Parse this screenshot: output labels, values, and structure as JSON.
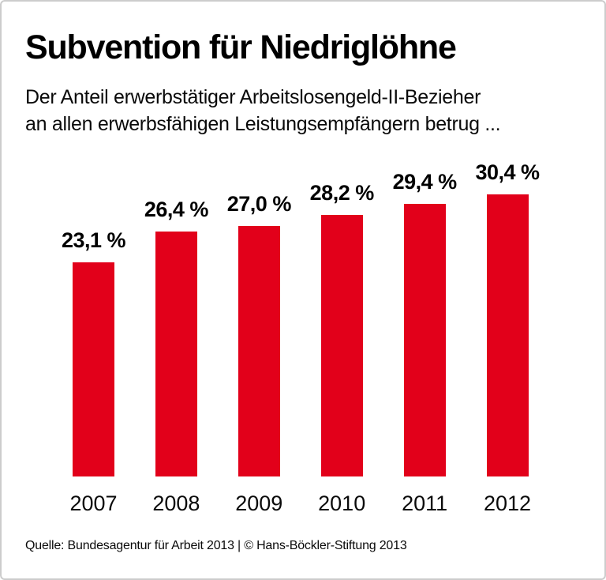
{
  "header": {
    "title": "Subvention für Niedriglöhne",
    "subtitle": "Der Anteil erwerbstätiger Arbeitslosengeld-II-Bezieher\nan allen erwerbsfähigen Leistungsempfängern betrug ..."
  },
  "chart_data": {
    "type": "bar",
    "title": "Subvention für Niedriglöhne",
    "subtitle": "Der Anteil erwerbstätiger Arbeitslosengeld-II-Bezieher an allen erwerbsfähigen Leistungsempfängern betrug ...",
    "categories": [
      "2007",
      "2008",
      "2009",
      "2010",
      "2011",
      "2012"
    ],
    "values": [
      23.1,
      26.4,
      27.0,
      28.2,
      29.4,
      30.4
    ],
    "value_labels": [
      "23,1 %",
      "26,4 %",
      "27,0 %",
      "28,2 %",
      "29,4 %",
      "30,4 %"
    ],
    "xlabel": "",
    "ylabel": "",
    "ylim": [
      0,
      32
    ],
    "grid": false,
    "legend": false,
    "bar_color": "#e2001a"
  },
  "footer": {
    "source": "Quelle: Bundesagentur für Arbeit 2013 | © Hans-Böckler-Stiftung 2013"
  },
  "colors": {
    "bar": "#e2001a",
    "text": "#000000",
    "border": "#cccccc",
    "background": "#ffffff"
  }
}
